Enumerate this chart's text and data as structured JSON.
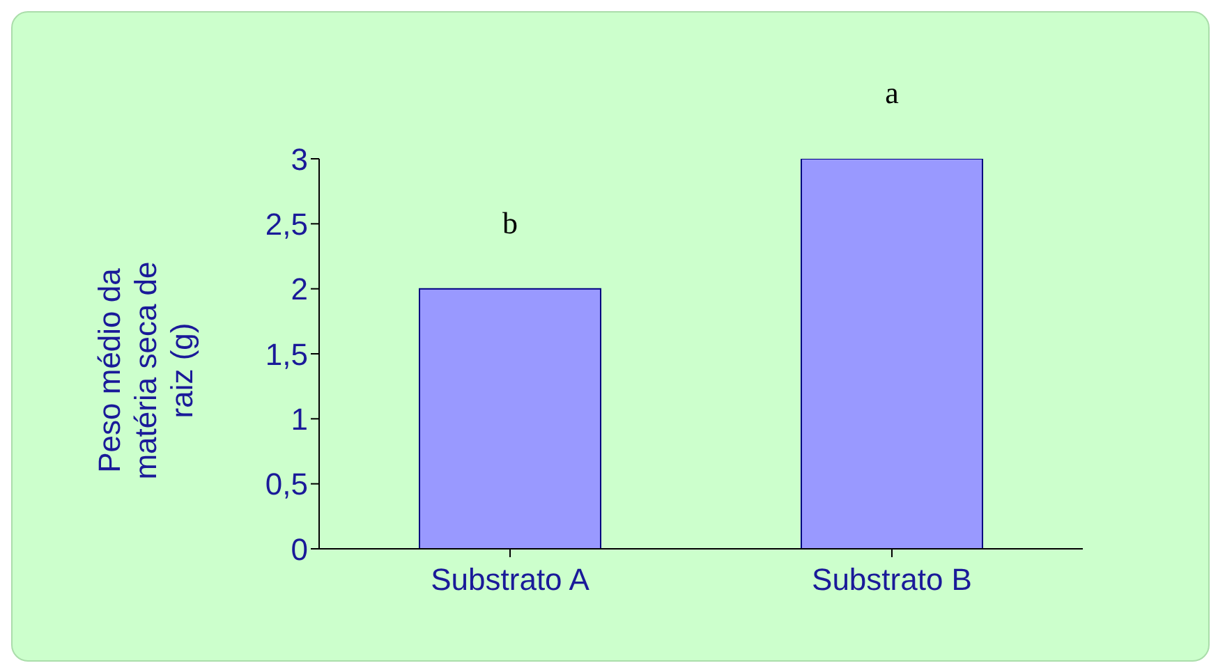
{
  "chart_data": {
    "type": "bar",
    "ylabel": "Peso médio da matéria seca de raiz (g)",
    "categories": [
      "Substrato A",
      "Substrato B"
    ],
    "values": [
      2,
      3
    ],
    "color": "#9999ff",
    "ylim": [
      0,
      3
    ],
    "yticks": [
      0,
      {
        "value": 0.5,
        "label": "0,5"
      },
      1,
      {
        "value": 1.5,
        "label": "1,5"
      },
      2,
      {
        "value": 2.5,
        "label": "2,5"
      },
      3
    ],
    "legend": false,
    "annotations": [
      {
        "text": "b",
        "x": "Substrato A",
        "y": 2
      },
      {
        "text": "a",
        "x": "Substrato B",
        "y": 3
      }
    ]
  }
}
